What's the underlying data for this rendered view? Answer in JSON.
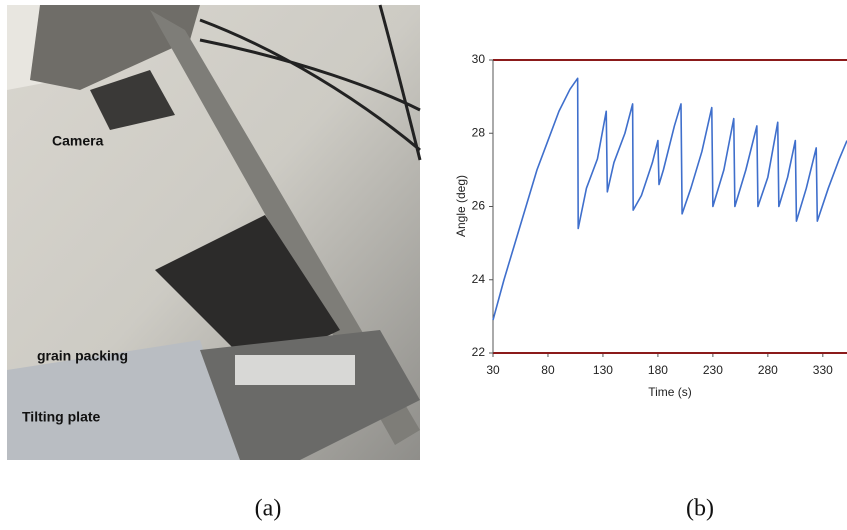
{
  "photo": {
    "labels": [
      "Camera",
      "grain packing",
      "Tilting plate"
    ]
  },
  "captions": [
    "(a)",
    "(b)"
  ],
  "chart_data": {
    "type": "line",
    "x_label": "Time (s)",
    "y_label": "Angle (deg)",
    "x": [
      30,
      40,
      50,
      60,
      70,
      80,
      90,
      100,
      107,
      107.5,
      115,
      125,
      133,
      134,
      140,
      150,
      157,
      157.5,
      165,
      175,
      180,
      181,
      185,
      195,
      201,
      202,
      210,
      220,
      229,
      230,
      240,
      249,
      250,
      260,
      270,
      271,
      280,
      289,
      290,
      298,
      305,
      306,
      315,
      324,
      325,
      335,
      345,
      352
    ],
    "series": [
      {
        "color": "#3f6fcc",
        "values": [
          22.9,
          24,
          25,
          26,
          27,
          27.8,
          28.6,
          29.2,
          29.5,
          25.4,
          26.5,
          27.3,
          28.6,
          26.4,
          27.2,
          28,
          28.8,
          25.9,
          26.3,
          27.2,
          27.8,
          26.6,
          27,
          28.2,
          28.8,
          25.8,
          26.5,
          27.5,
          28.7,
          26,
          27,
          28.4,
          26,
          27,
          28.2,
          26,
          26.8,
          28.3,
          26,
          26.8,
          27.8,
          25.6,
          26.5,
          27.6,
          25.6,
          26.5,
          27.3,
          27.8
        ]
      }
    ],
    "xlim": [
      30,
      352
    ],
    "xticks": [
      30,
      80,
      130,
      180,
      230,
      280,
      330
    ],
    "ylim": [
      22,
      30
    ],
    "yticks": [
      22,
      24,
      26,
      28,
      30
    ],
    "frame_color": "#8b1a1a"
  }
}
